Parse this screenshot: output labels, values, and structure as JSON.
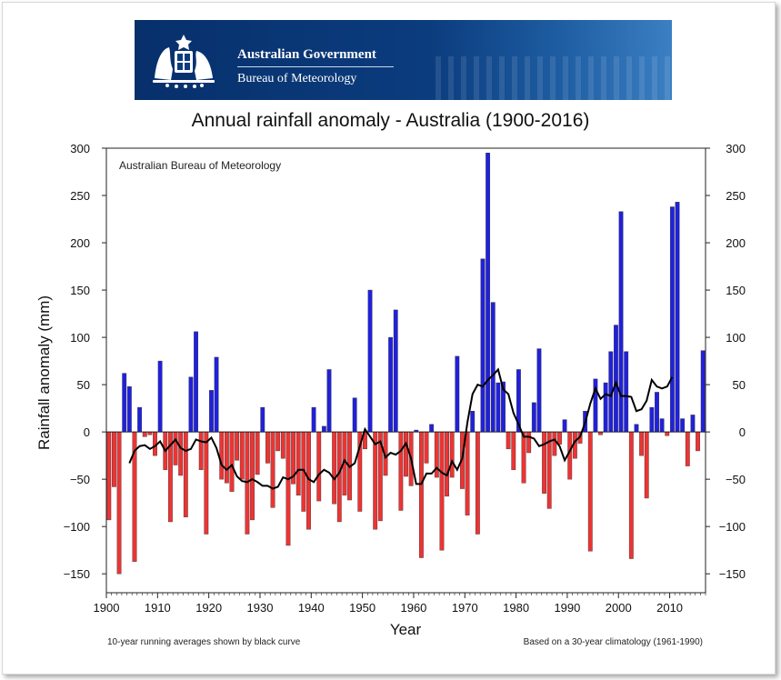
{
  "header": {
    "gov_name": "Australian Government",
    "bureau_name": "Bureau of Meteorology",
    "crest_icon": "coat-of-arms-icon"
  },
  "chart_data": {
    "type": "bar",
    "title": "Annual rainfall anomaly - Australia (1900-2016)",
    "watermark": "Australian Bureau of Meteorology",
    "xlabel": "Year",
    "ylabel": "Rainfall anomaly (mm)",
    "footnote_left": "10-year running averages shown by black curve",
    "footnote_right": "Based on a 30-year climatology (1961-1990)",
    "xlim": [
      1900,
      2017
    ],
    "ylim": [
      -170,
      300
    ],
    "x_ticks": [
      1900,
      1910,
      1920,
      1930,
      1940,
      1950,
      1960,
      1970,
      1980,
      1990,
      2000,
      2010
    ],
    "y_ticks": [
      -150,
      -100,
      -50,
      0,
      50,
      100,
      150,
      200,
      250,
      300
    ],
    "positive_color": "#2020dd",
    "negative_color": "#ee3333",
    "grid": false,
    "years": [
      1900,
      1901,
      1902,
      1903,
      1904,
      1905,
      1906,
      1907,
      1908,
      1909,
      1910,
      1911,
      1912,
      1913,
      1914,
      1915,
      1916,
      1917,
      1918,
      1919,
      1920,
      1921,
      1922,
      1923,
      1924,
      1925,
      1926,
      1927,
      1928,
      1929,
      1930,
      1931,
      1932,
      1933,
      1934,
      1935,
      1936,
      1937,
      1938,
      1939,
      1940,
      1941,
      1942,
      1943,
      1944,
      1945,
      1946,
      1947,
      1948,
      1949,
      1950,
      1951,
      1952,
      1953,
      1954,
      1955,
      1956,
      1957,
      1958,
      1959,
      1960,
      1961,
      1962,
      1963,
      1964,
      1965,
      1966,
      1967,
      1968,
      1969,
      1970,
      1971,
      1972,
      1973,
      1974,
      1975,
      1976,
      1977,
      1978,
      1979,
      1980,
      1981,
      1982,
      1983,
      1984,
      1985,
      1986,
      1987,
      1988,
      1989,
      1990,
      1991,
      1992,
      1993,
      1994,
      1995,
      1996,
      1997,
      1998,
      1999,
      2000,
      2001,
      2002,
      2003,
      2004,
      2005,
      2006,
      2007,
      2008,
      2009,
      2010,
      2011,
      2012,
      2013,
      2014,
      2015,
      2016
    ],
    "series": [
      {
        "values": [
          -93,
          -58,
          -150,
          62,
          48,
          -137,
          26,
          -5,
          -3,
          -25,
          75,
          -40,
          -95,
          -35,
          -46,
          -90,
          58,
          106,
          -40,
          -108,
          44,
          79,
          -50,
          -54,
          -63,
          -30,
          -50,
          -108,
          -93,
          -45,
          26,
          -33,
          -80,
          -20,
          -28,
          -120,
          -55,
          -67,
          -84,
          -103,
          26,
          -73,
          6,
          66,
          -76,
          -95,
          -67,
          -72,
          36,
          -84,
          -18,
          150,
          -103,
          -94,
          -46,
          100,
          129,
          -83,
          -47,
          -57,
          2,
          -133,
          -33,
          8,
          -48,
          -125,
          -68,
          -48,
          80,
          -60,
          -88,
          22,
          -108,
          183,
          295,
          137,
          52,
          53,
          -18,
          -40,
          66,
          -54,
          -22,
          31,
          88,
          -65,
          -81,
          -25,
          -13,
          13,
          -50,
          -28,
          -12,
          22,
          -126,
          56,
          -3,
          52,
          85,
          113,
          233,
          85,
          -134,
          8,
          -25,
          -70,
          26,
          42,
          14,
          -4,
          238,
          243,
          14,
          -36,
          18,
          -20,
          86
        ]
      },
      {
        "values": [
          null,
          null,
          null,
          null,
          -33,
          -20,
          -15,
          -14,
          -18,
          -15,
          -10,
          -20,
          -14,
          -8,
          -17,
          -20,
          -18,
          -8,
          -10,
          -11,
          -6,
          -17,
          -35,
          -40,
          -35,
          -47,
          -52,
          -53,
          -50,
          -53,
          -57,
          -57,
          -60,
          -58,
          -48,
          -50,
          -47,
          -40,
          -40,
          -50,
          -53,
          -45,
          -40,
          -43,
          -50,
          -43,
          -30,
          -37,
          -33,
          -15,
          3,
          -5,
          -13,
          -10,
          -27,
          -22,
          -24,
          -20,
          -12,
          -28,
          -55,
          -55,
          -44,
          -44,
          -38,
          -43,
          -46,
          -31,
          -40,
          -28,
          10,
          40,
          50,
          48,
          55,
          60,
          66,
          45,
          40,
          20,
          8,
          -5,
          -5,
          -7,
          -15,
          -13,
          -10,
          -8,
          -15,
          -30,
          -20,
          -10,
          -5,
          10,
          30,
          46,
          35,
          40,
          38,
          52,
          38,
          38,
          37,
          22,
          24,
          33,
          55,
          48,
          46,
          48,
          58,
          null,
          null,
          null,
          null,
          null
        ]
      }
    ]
  }
}
